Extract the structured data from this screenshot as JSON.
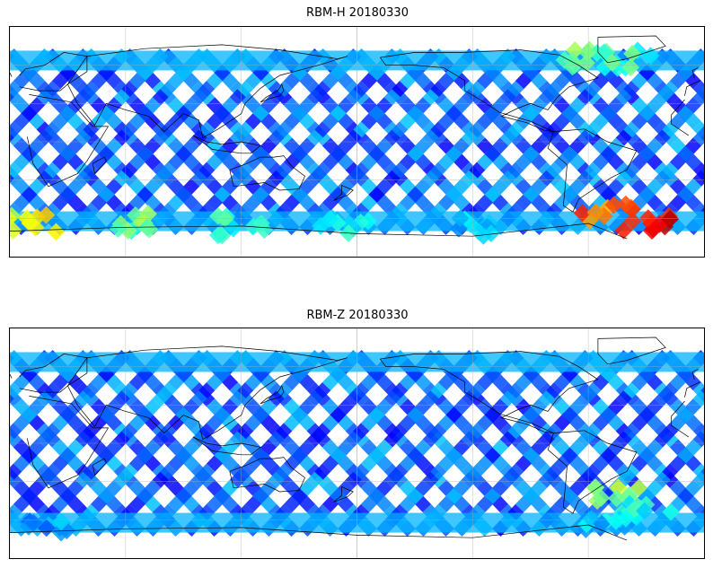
{
  "panels": [
    {
      "title": "RBM-H 20180330",
      "colormap": "jet",
      "band_lat_range": [
        -70,
        70
      ],
      "center_longitude": 180,
      "hot_regions": [
        {
          "lon": -50,
          "lat": -55,
          "level": 0.85
        },
        {
          "lon": -30,
          "lat": -62,
          "level": 0.95
        },
        {
          "lon": 10,
          "lat": -65,
          "level": 0.7
        },
        {
          "lon": 60,
          "lat": -63,
          "level": 0.55
        },
        {
          "lon": 120,
          "lat": -66,
          "level": 0.5
        },
        {
          "lon": 175,
          "lat": -66,
          "level": 0.45
        },
        {
          "lon": -120,
          "lat": -67,
          "level": 0.4
        },
        {
          "lon": -40,
          "lat": 65,
          "level": 0.5
        },
        {
          "lon": -60,
          "lat": 65,
          "level": 0.55
        }
      ]
    },
    {
      "title": "RBM-Z 20180330",
      "colormap": "jet",
      "band_lat_range": [
        -70,
        70
      ],
      "center_longitude": 180,
      "hot_regions": [
        {
          "lon": -45,
          "lat": -40,
          "level": 0.6
        },
        {
          "lon": -30,
          "lat": -50,
          "level": 0.45
        },
        {
          "lon": -50,
          "lat": -65,
          "level": 0.4
        },
        {
          "lon": 20,
          "lat": -65,
          "level": 0.35
        }
      ]
    }
  ]
}
